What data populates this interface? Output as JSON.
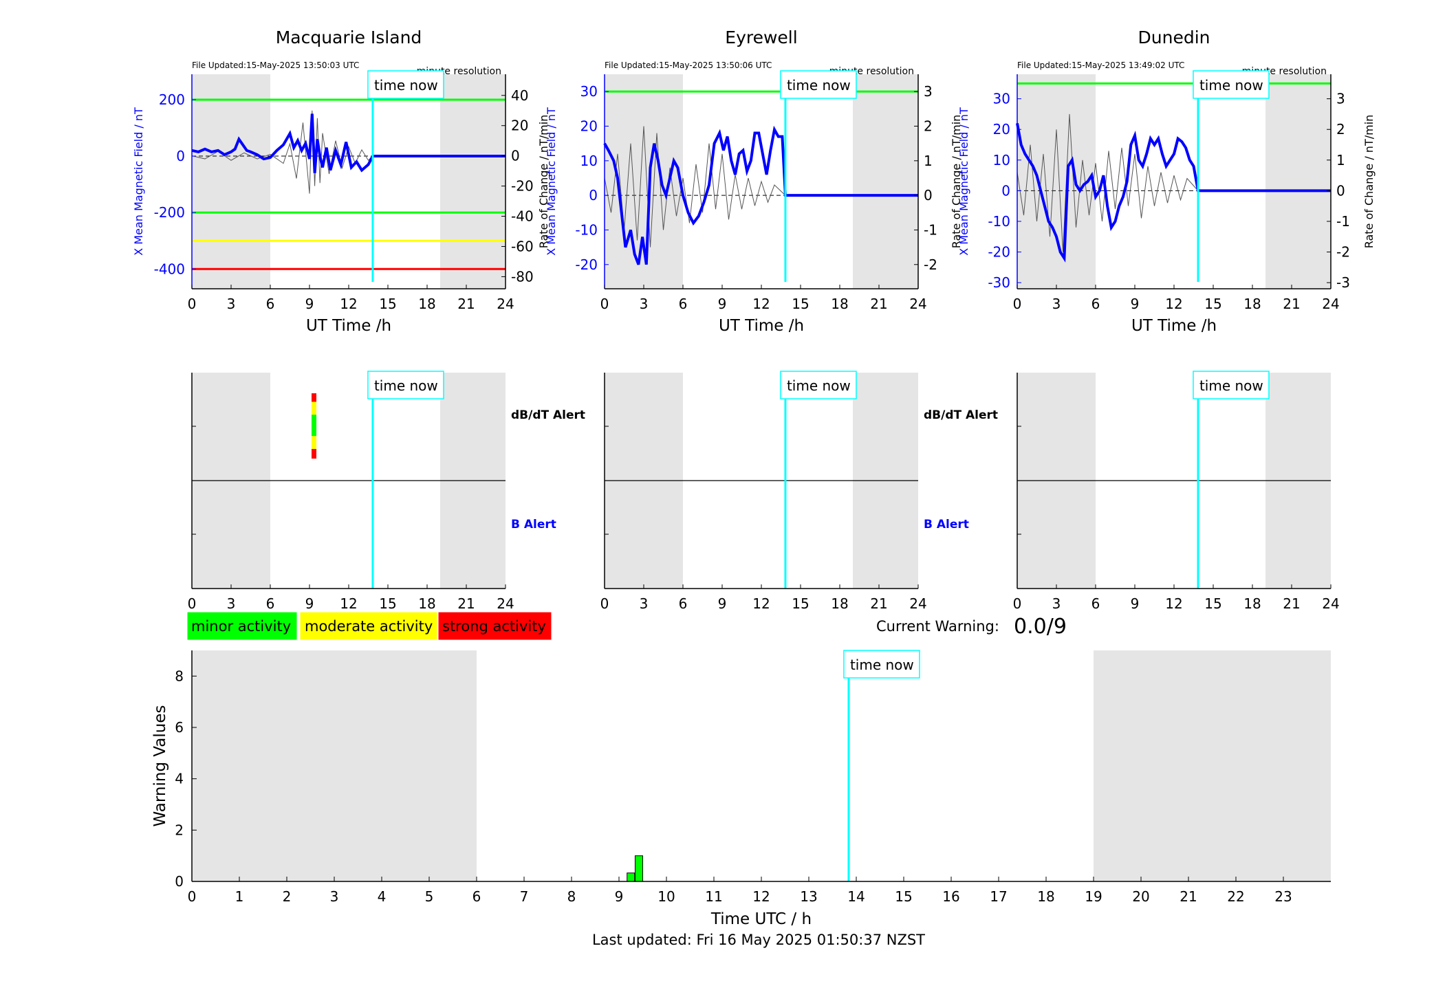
{
  "figure": {
    "time_now_label": "time now",
    "time_now_hours": 13.84,
    "night_shading": [
      [
        0,
        6
      ],
      [
        19,
        24
      ]
    ],
    "x_tick_labels_panels": [
      "0",
      "3",
      "6",
      "9",
      "12",
      "15",
      "18",
      "21",
      "24"
    ],
    "xlabel_panels": "UT Time /h",
    "footer": "Last updated: Fri 16 May 2025 01:50:37 NZST"
  },
  "alert_labels": {
    "dbdt": "dB/dT Alert",
    "b": "B Alert"
  },
  "legend": {
    "minor": "minor activity",
    "moderate": "moderate activity",
    "strong": "strong activity",
    "colors": {
      "minor": "#00ff00",
      "moderate": "#ffff00",
      "strong": "#ff0000"
    }
  },
  "current_warning": {
    "label": "Current Warning:",
    "value": "0.0/9"
  },
  "colors": {
    "field": "#0000ff",
    "now_line": "#00ffff",
    "night": "#e5e5e5",
    "rate": "#555555"
  },
  "chart_data": [
    {
      "type": "line",
      "title": "Macquarie Island",
      "file_updated": "File Updated:15-May-2025 13:50:03 UTC",
      "resolution": "minute resolution",
      "ylabel": "X Mean Magnetic Field / nT",
      "y2label": "Rate of Change / nT/min",
      "ylim": [
        -470,
        290
      ],
      "y_ticks": [
        -400,
        -200,
        0,
        200
      ],
      "y2lim": [
        -88,
        54
      ],
      "y2_ticks": [
        -80,
        -60,
        -40,
        -20,
        0,
        20,
        40
      ],
      "thresholds": [
        {
          "value": 200,
          "color": "#00ff00"
        },
        {
          "value": -200,
          "color": "#00ff00"
        },
        {
          "value": -300,
          "color": "#ffff00"
        },
        {
          "value": -400,
          "color": "#ff0000"
        }
      ],
      "field": {
        "x": [
          0,
          0.5,
          1,
          1.5,
          2,
          2.5,
          3,
          3.3,
          3.6,
          3.9,
          4.2,
          4.5,
          5,
          5.5,
          6,
          6.5,
          7,
          7.5,
          7.8,
          8.1,
          8.4,
          8.7,
          9,
          9.2,
          9.4,
          9.6,
          9.8,
          10,
          10.3,
          10.6,
          11,
          11.4,
          11.8,
          12.2,
          12.6,
          13,
          13.5,
          13.84,
          24
        ],
        "y": [
          20,
          15,
          25,
          15,
          20,
          5,
          15,
          25,
          60,
          40,
          20,
          15,
          5,
          -10,
          -5,
          20,
          40,
          80,
          30,
          55,
          20,
          45,
          -10,
          150,
          -60,
          60,
          0,
          -40,
          30,
          -50,
          20,
          -30,
          50,
          -40,
          -20,
          -50,
          -30,
          0,
          0
        ]
      },
      "rate": {
        "x": [
          0,
          1,
          2,
          3,
          4,
          5,
          6,
          7,
          7.5,
          8,
          8.5,
          9,
          9.2,
          9.4,
          9.6,
          9.8,
          10,
          10.5,
          11,
          11.5,
          12,
          12.5,
          13,
          13.5,
          13.84
        ],
        "y": [
          0,
          -2,
          3,
          -3,
          2,
          -2,
          1,
          -5,
          8,
          -15,
          22,
          -25,
          30,
          -20,
          25,
          -18,
          15,
          -12,
          10,
          -8,
          6,
          -5,
          4,
          -3,
          0
        ]
      }
    },
    {
      "type": "line",
      "title": "Eyrewell",
      "file_updated": "File Updated:15-May-2025 13:50:06 UTC",
      "resolution": "minute resolution",
      "ylabel": "X Mean Magnetic Field / nT",
      "y2label": "Rate of Change / nT/min",
      "ylim": [
        -27,
        35
      ],
      "y_ticks": [
        -20,
        -10,
        0,
        10,
        20,
        30
      ],
      "y2lim": [
        -2.7,
        3.5
      ],
      "y2_ticks": [
        -2,
        -1,
        0,
        1,
        2,
        3
      ],
      "thresholds": [
        {
          "value": 30,
          "color": "#00ff00"
        }
      ],
      "field": {
        "x": [
          0,
          0.3,
          0.7,
          1,
          1.3,
          1.6,
          2,
          2.3,
          2.6,
          2.9,
          3.2,
          3.5,
          3.8,
          4.1,
          4.4,
          4.7,
          5,
          5.3,
          5.6,
          6,
          6.4,
          6.8,
          7.2,
          7.6,
          8,
          8.4,
          8.8,
          9.1,
          9.4,
          9.7,
          10,
          10.3,
          10.6,
          10.9,
          11.2,
          11.5,
          11.8,
          12.1,
          12.4,
          12.7,
          13,
          13.3,
          13.6,
          13.84,
          24
        ],
        "y": [
          15,
          13,
          10,
          5,
          -5,
          -15,
          -10,
          -17,
          -20,
          -12,
          -20,
          8,
          15,
          10,
          3,
          0,
          5,
          10,
          8,
          0,
          -5,
          -8,
          -6,
          -2,
          3,
          15,
          18,
          13,
          17,
          10,
          6,
          12,
          13,
          7,
          10,
          18,
          18,
          12,
          6,
          13,
          19,
          17,
          17,
          0,
          0
        ]
      },
      "rate": {
        "x": [
          0,
          0.5,
          1,
          1.5,
          2,
          2.5,
          3,
          3.5,
          4,
          4.5,
          5,
          5.5,
          6,
          6.5,
          7,
          7.5,
          8,
          8.5,
          9,
          9.5,
          10,
          10.5,
          11,
          11.5,
          12,
          12.5,
          13,
          13.84
        ],
        "y": [
          0.5,
          -0.5,
          1.2,
          -1,
          1.5,
          -1.3,
          2,
          -1.5,
          1.8,
          -1,
          0.8,
          -0.6,
          0.5,
          -0.8,
          0.9,
          -0.5,
          1.5,
          -0.4,
          1.2,
          -0.7,
          0.6,
          -0.4,
          0.5,
          -0.3,
          0.4,
          -0.2,
          0.3,
          0
        ]
      }
    },
    {
      "type": "line",
      "title": "Dunedin",
      "file_updated": "File Updated:15-May-2025 13:49:02 UTC",
      "resolution": "minute resolution",
      "ylabel": "X Mean Magnetic Field / nT",
      "y2label": "Rate of Change / nT/min",
      "ylim": [
        -32,
        38
      ],
      "y_ticks": [
        -30,
        -20,
        -10,
        0,
        10,
        20,
        30
      ],
      "y2lim": [
        -3.2,
        3.8
      ],
      "y2_ticks": [
        -3,
        -2,
        -1,
        0,
        1,
        2,
        3
      ],
      "thresholds": [
        {
          "value": 35,
          "color": "#00ff00"
        }
      ],
      "field": {
        "x": [
          0,
          0.3,
          0.6,
          0.9,
          1.2,
          1.5,
          1.8,
          2.1,
          2.4,
          2.7,
          3,
          3.3,
          3.6,
          3.9,
          4.2,
          4.5,
          4.8,
          5.1,
          5.4,
          5.7,
          6,
          6.3,
          6.6,
          6.9,
          7.2,
          7.5,
          7.8,
          8.1,
          8.4,
          8.7,
          9,
          9.3,
          9.6,
          9.9,
          10.2,
          10.5,
          10.8,
          11.1,
          11.4,
          11.7,
          12,
          12.3,
          12.6,
          12.9,
          13.2,
          13.5,
          13.84,
          24
        ],
        "y": [
          22,
          15,
          12,
          10,
          8,
          5,
          0,
          -5,
          -10,
          -12,
          -15,
          -20,
          -22,
          8,
          10,
          2,
          0,
          2,
          3,
          5,
          -2,
          0,
          5,
          -5,
          -12,
          -10,
          -5,
          -2,
          3,
          15,
          18,
          10,
          8,
          12,
          17,
          15,
          17,
          12,
          8,
          10,
          12,
          17,
          16,
          14,
          10,
          8,
          0,
          0
        ]
      },
      "rate": {
        "x": [
          0,
          0.5,
          1,
          1.5,
          2,
          2.5,
          3,
          3.5,
          4,
          4.5,
          5,
          5.5,
          6,
          6.5,
          7,
          7.5,
          8,
          8.5,
          9,
          9.5,
          10,
          10.5,
          11,
          11.5,
          12,
          12.5,
          13,
          13.84
        ],
        "y": [
          0.6,
          -0.8,
          1.5,
          -1,
          1.2,
          -1.5,
          2,
          -2,
          2.5,
          -1.2,
          1,
          -0.8,
          0.9,
          -1,
          1.3,
          -0.6,
          1.4,
          -0.5,
          1.2,
          -0.9,
          0.8,
          -0.5,
          0.6,
          -0.4,
          0.5,
          -0.3,
          0.4,
          0
        ]
      }
    },
    {
      "type": "bar",
      "title": "",
      "xlabel": "Time UTC / h",
      "ylabel": "Warning Values",
      "xlim": [
        0,
        24
      ],
      "ylim": [
        0,
        9
      ],
      "x_ticks": [
        0,
        1,
        2,
        3,
        4,
        5,
        6,
        7,
        8,
        9,
        10,
        11,
        12,
        13,
        14,
        15,
        16,
        17,
        18,
        19,
        20,
        21,
        22,
        23
      ],
      "y_ticks": [
        0,
        2,
        4,
        6,
        8
      ],
      "bars": [
        {
          "x": 9.25,
          "width": 0.16,
          "value": 0.33
        },
        {
          "x": 9.42,
          "width": 0.16,
          "value": 1.0
        }
      ],
      "bar_color": "#00ff00"
    }
  ],
  "alerts": [
    {
      "station": "Macquarie Island",
      "dbdt_marks": [
        {
          "x": 9.0,
          "y0": 0.0,
          "y1": 0.08,
          "color": "#ff0000"
        },
        {
          "x": 9.0,
          "y0": 0.08,
          "y1": 0.2,
          "color": "#ffff00"
        },
        {
          "x": 9.0,
          "y0": 0.2,
          "y1": 0.4,
          "color": "#00ff00"
        },
        {
          "x": 9.0,
          "y0": 0.4,
          "y1": 0.52,
          "color": "#ffff00"
        },
        {
          "x": 9.0,
          "y0": 0.52,
          "y1": 0.61,
          "color": "#ff0000"
        }
      ]
    },
    {
      "station": "Eyrewell",
      "dbdt_marks": []
    },
    {
      "station": "Dunedin",
      "dbdt_marks": []
    }
  ]
}
